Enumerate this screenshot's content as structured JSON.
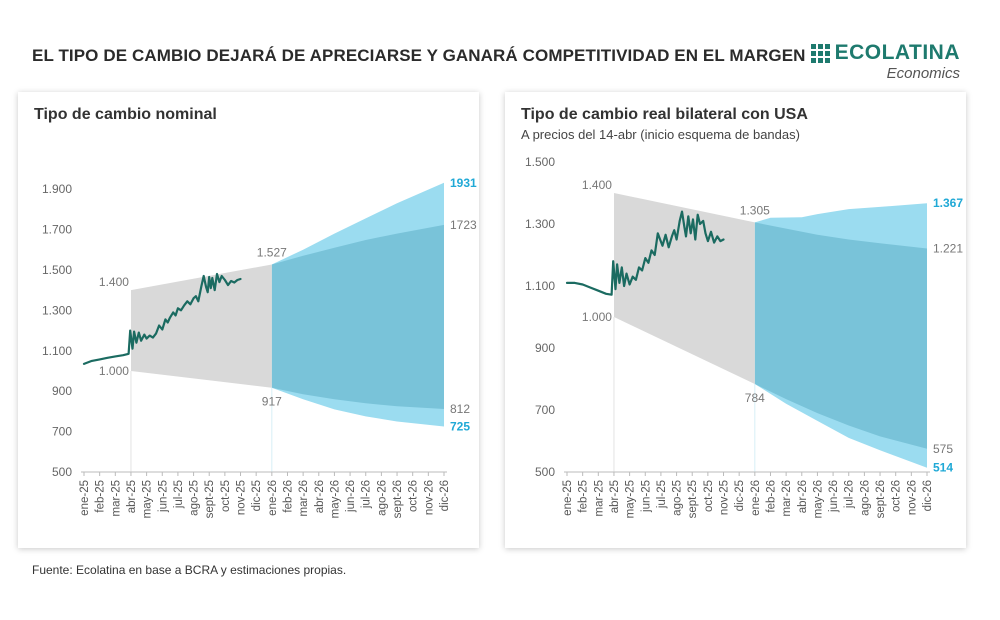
{
  "title": "EL TIPO DE CAMBIO DEJARÁ DE APRECIARSE Y GANARÁ COMPETITIVIDAD EN EL MARGEN",
  "brand": {
    "name": "ECOLATINA",
    "sub": "Economics"
  },
  "source": "Fuente: Ecolatina en base a BCRA y estimaciones propias.",
  "colors": {
    "line": "#1b6b61",
    "band_hist": "#d9d9d9",
    "band_inner": "#79c3d9",
    "band_outer": "#9bdcf0",
    "highlight": "#20a9d6"
  },
  "charts": [
    {
      "title": "Tipo de cambio nominal",
      "subtitle": "",
      "chart_data": {
        "type": "area",
        "x_labels": [
          "ene-25",
          "feb-25",
          "mar-25",
          "abr-25",
          "may-25",
          "jun-25",
          "jul-25",
          "ago-25",
          "sept-25",
          "oct-25",
          "nov-25",
          "dic-25",
          "ene-26",
          "feb-26",
          "mar-26",
          "abr-26",
          "may-26",
          "jun-26",
          "jul-26",
          "ago-26",
          "sept-26",
          "oct-26",
          "nov-26",
          "dic-26"
        ],
        "ylim": [
          500,
          1950
        ],
        "y_ticks": [
          500,
          700,
          900,
          1100,
          1300,
          1500,
          1700,
          1900
        ],
        "y_tick_labels": [
          "500",
          "700",
          "900",
          "1.100",
          "1.300",
          "1.500",
          "1.700",
          "1.900"
        ],
        "band_start": 3,
        "forecast_start": 12,
        "band_upper": [
          [
            3,
            1400
          ],
          [
            12,
            1527
          ]
        ],
        "band_lower": [
          [
            3,
            1000
          ],
          [
            12,
            917
          ]
        ],
        "inner_upper": [
          [
            12,
            1527
          ],
          [
            14,
            1570
          ],
          [
            16,
            1610
          ],
          [
            18,
            1648
          ],
          [
            20,
            1680
          ],
          [
            23,
            1723
          ]
        ],
        "inner_lower": [
          [
            12,
            917
          ],
          [
            14,
            885
          ],
          [
            16,
            860
          ],
          [
            18,
            840
          ],
          [
            20,
            825
          ],
          [
            23,
            812
          ]
        ],
        "outer_upper": [
          [
            12,
            1527
          ],
          [
            14,
            1600
          ],
          [
            16,
            1680
          ],
          [
            18,
            1755
          ],
          [
            20,
            1830
          ],
          [
            23,
            1931
          ]
        ],
        "outer_lower": [
          [
            12,
            917
          ],
          [
            14,
            860
          ],
          [
            16,
            810
          ],
          [
            18,
            775
          ],
          [
            20,
            750
          ],
          [
            23,
            725
          ]
        ],
        "series": [
          {
            "values": [
              [
                0,
                1035
              ],
              [
                0.5,
                1050
              ],
              [
                1,
                1057
              ],
              [
                1.5,
                1065
              ],
              [
                2,
                1072
              ],
              [
                2.5,
                1078
              ],
              [
                2.85,
                1085
              ],
              [
                2.95,
                1200
              ],
              [
                3.1,
                1110
              ],
              [
                3.2,
                1195
              ],
              [
                3.35,
                1140
              ],
              [
                3.5,
                1190
              ],
              [
                3.65,
                1150
              ],
              [
                3.85,
                1180
              ],
              [
                4.0,
                1160
              ],
              [
                4.2,
                1175
              ],
              [
                4.4,
                1165
              ],
              [
                4.6,
                1185
              ],
              [
                4.8,
                1225
              ],
              [
                5.0,
                1205
              ],
              [
                5.2,
                1255
              ],
              [
                5.35,
                1240
              ],
              [
                5.5,
                1265
              ],
              [
                5.7,
                1290
              ],
              [
                5.85,
                1275
              ],
              [
                6.0,
                1310
              ],
              [
                6.2,
                1300
              ],
              [
                6.4,
                1325
              ],
              [
                6.6,
                1345
              ],
              [
                6.8,
                1330
              ],
              [
                7.0,
                1360
              ],
              [
                7.15,
                1370
              ],
              [
                7.3,
                1345
              ],
              [
                7.5,
                1420
              ],
              [
                7.65,
                1470
              ],
              [
                7.8,
                1415
              ],
              [
                7.9,
                1390
              ],
              [
                8.0,
                1465
              ],
              [
                8.1,
                1410
              ],
              [
                8.2,
                1460
              ],
              [
                8.35,
                1400
              ],
              [
                8.5,
                1480
              ],
              [
                8.65,
                1440
              ],
              [
                8.8,
                1470
              ],
              [
                9.0,
                1450
              ],
              [
                9.2,
                1425
              ],
              [
                9.4,
                1445
              ],
              [
                9.6,
                1438
              ],
              [
                9.8,
                1450
              ],
              [
                10.0,
                1455
              ]
            ]
          }
        ],
        "annotations": [
          {
            "x": 3,
            "y": 1400,
            "text": "1.400"
          },
          {
            "x": 3,
            "y": 1000,
            "text": "1.000"
          },
          {
            "x": 12,
            "y": 1527,
            "text": "1.527"
          },
          {
            "x": 12,
            "y": 917,
            "text": "917"
          },
          {
            "x": 23,
            "y": 1931,
            "text": "1931",
            "highlight": true
          },
          {
            "x": 23,
            "y": 1723,
            "text": "1723"
          },
          {
            "x": 23,
            "y": 812,
            "text": "812"
          },
          {
            "x": 23,
            "y": 725,
            "text": "725",
            "highlight": true
          }
        ]
      }
    },
    {
      "title": "Tipo de cambio real bilateral con USA",
      "subtitle": "A precios del 14-abr (inicio esquema de bandas)",
      "chart_data": {
        "type": "area",
        "x_labels": [
          "ene-25",
          "feb-25",
          "mar-25",
          "abr-25",
          "may-25",
          "jun-25",
          "jul-25",
          "ago-25",
          "sept-25",
          "oct-25",
          "nov-25",
          "dic-25",
          "ene-26",
          "feb-26",
          "mar-26",
          "abr-26",
          "may-26",
          "jun-26",
          "jul-26",
          "ago-26",
          "sept-26",
          "oct-26",
          "nov-26",
          "dic-26"
        ],
        "ylim": [
          500,
          1500
        ],
        "y_ticks": [
          500,
          700,
          900,
          1100,
          1300,
          1500
        ],
        "y_tick_labels": [
          "500",
          "700",
          "900",
          "1.100",
          "1.300",
          "1.500"
        ],
        "band_start": 3,
        "forecast_start": 12,
        "band_upper": [
          [
            3,
            1400
          ],
          [
            12,
            1305
          ]
        ],
        "band_lower": [
          [
            3,
            1000
          ],
          [
            12,
            784
          ]
        ],
        "inner_upper": [
          [
            12,
            1305
          ],
          [
            14,
            1285
          ],
          [
            16,
            1265
          ],
          [
            18,
            1250
          ],
          [
            20,
            1238
          ],
          [
            23,
            1221
          ]
        ],
        "inner_lower": [
          [
            12,
            784
          ],
          [
            14,
            735
          ],
          [
            16,
            690
          ],
          [
            18,
            650
          ],
          [
            20,
            615
          ],
          [
            23,
            575
          ]
        ],
        "outer_upper": [
          [
            12,
            1305
          ],
          [
            13,
            1320
          ],
          [
            15,
            1322
          ],
          [
            16,
            1332
          ],
          [
            18,
            1348
          ],
          [
            20,
            1355
          ],
          [
            23,
            1367
          ]
        ],
        "outer_lower": [
          [
            12,
            784
          ],
          [
            14,
            720
          ],
          [
            16,
            665
          ],
          [
            18,
            610
          ],
          [
            20,
            570
          ],
          [
            23,
            514
          ]
        ],
        "series": [
          {
            "values": [
              [
                0,
                1110
              ],
              [
                0.5,
                1110
              ],
              [
                1,
                1105
              ],
              [
                1.5,
                1095
              ],
              [
                2,
                1085
              ],
              [
                2.5,
                1075
              ],
              [
                2.85,
                1072
              ],
              [
                2.95,
                1180
              ],
              [
                3.1,
                1090
              ],
              [
                3.2,
                1170
              ],
              [
                3.35,
                1110
              ],
              [
                3.5,
                1160
              ],
              [
                3.65,
                1100
              ],
              [
                3.8,
                1140
              ],
              [
                4.0,
                1105
              ],
              [
                4.2,
                1130
              ],
              [
                4.4,
                1120
              ],
              [
                4.6,
                1160
              ],
              [
                4.8,
                1150
              ],
              [
                5.0,
                1190
              ],
              [
                5.2,
                1175
              ],
              [
                5.4,
                1215
              ],
              [
                5.6,
                1200
              ],
              [
                5.8,
                1270
              ],
              [
                5.95,
                1250
              ],
              [
                6.1,
                1230
              ],
              [
                6.3,
                1265
              ],
              [
                6.5,
                1225
              ],
              [
                6.7,
                1260
              ],
              [
                6.85,
                1280
              ],
              [
                7.0,
                1250
              ],
              [
                7.2,
                1310
              ],
              [
                7.35,
                1340
              ],
              [
                7.5,
                1290
              ],
              [
                7.6,
                1260
              ],
              [
                7.75,
                1325
              ],
              [
                7.9,
                1270
              ],
              [
                8.05,
                1315
              ],
              [
                8.2,
                1250
              ],
              [
                8.35,
                1330
              ],
              [
                8.5,
                1300
              ],
              [
                8.7,
                1310
              ],
              [
                8.85,
                1270
              ],
              [
                9.0,
                1245
              ],
              [
                9.2,
                1275
              ],
              [
                9.4,
                1240
              ],
              [
                9.6,
                1260
              ],
              [
                9.8,
                1245
              ],
              [
                10.0,
                1250
              ]
            ]
          }
        ],
        "annotations": [
          {
            "x": 3,
            "y": 1400,
            "text": "1.400"
          },
          {
            "x": 3,
            "y": 1000,
            "text": "1.000"
          },
          {
            "x": 12,
            "y": 1305,
            "text": "1.305"
          },
          {
            "x": 12,
            "y": 784,
            "text": "784"
          },
          {
            "x": 23,
            "y": 1367,
            "text": "1.367",
            "highlight": true
          },
          {
            "x": 23,
            "y": 1221,
            "text": "1.221"
          },
          {
            "x": 23,
            "y": 575,
            "text": "575"
          },
          {
            "x": 23,
            "y": 514,
            "text": "514",
            "highlight": true
          }
        ]
      }
    }
  ]
}
